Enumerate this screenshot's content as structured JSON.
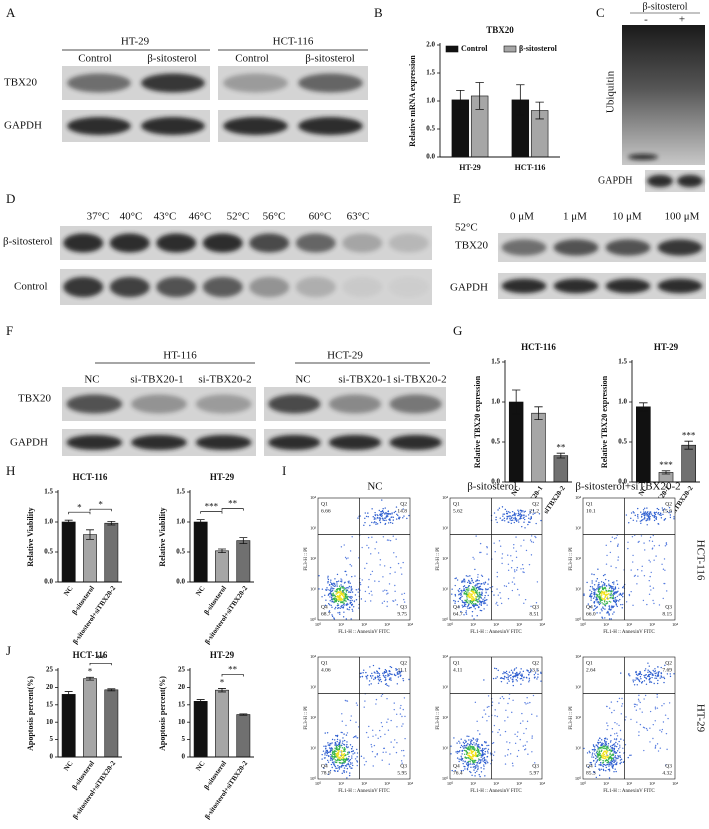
{
  "panels": {
    "A": {
      "label": "A",
      "groups": [
        "HT-29",
        "HCT-116"
      ],
      "lanes": [
        "Control",
        "β-sitosterol",
        "Control",
        "β-sitosterol"
      ],
      "rows": [
        "TBX20",
        "GAPDH"
      ]
    },
    "B": {
      "label": "B"
    },
    "C": {
      "label": "C",
      "treatment": "β-sitosterol",
      "lanes": [
        "-",
        "+"
      ],
      "rows": [
        "Ubiquitin",
        "GAPDH"
      ]
    },
    "D": {
      "label": "D",
      "lanes": [
        "37°C",
        "40°C",
        "43°C",
        "46°C",
        "52°C",
        "56°C",
        "60°C",
        "63°C"
      ],
      "rows": [
        "β-sitosterol",
        "Control"
      ]
    },
    "E": {
      "label": "E",
      "temperature": "52°C",
      "lanes": [
        "0 μM",
        "1 μM",
        "10 μM",
        "100 μM"
      ],
      "rows": [
        "TBX20",
        "GAPDH"
      ]
    },
    "F": {
      "label": "F",
      "groups": [
        "HT-116",
        "HCT-29"
      ],
      "lanes": [
        "NC",
        "si-TBX20-1",
        "si-TBX20-2",
        "NC",
        "si-TBX20-1",
        "si-TBX20-2"
      ],
      "rows": [
        "TBX20",
        "GAPDH"
      ]
    },
    "G": {
      "label": "G"
    },
    "H": {
      "label": "H"
    },
    "J": {
      "label": "J"
    }
  },
  "chart_data": [
    {
      "type": "bar",
      "title": "TBX20",
      "ylabel": "Relative mRNA expression",
      "categories": [
        "HT-29",
        "HCT-116"
      ],
      "series": [
        {
          "name": "Control",
          "color": "#111111",
          "values": [
            1.02,
            1.02
          ],
          "errors": [
            0.17,
            0.27
          ]
        },
        {
          "name": "β-sitosterol",
          "color": "#a6a6a6",
          "values": [
            1.09,
            0.83
          ],
          "errors": [
            0.24,
            0.15
          ]
        }
      ],
      "ylim": [
        0,
        2
      ],
      "yticks": [
        {
          "value": 0,
          "label": "0.0"
        },
        {
          "value": 0.5,
          "label": "0.5"
        },
        {
          "value": 1,
          "label": "1.0"
        },
        {
          "value": 1.5,
          "label": "1.5"
        },
        {
          "value": 2,
          "label": "2.0"
        }
      ]
    },
    {
      "type": "bar",
      "title": "HCT-116",
      "ylabel": "Relative TBX20 expression",
      "categories": [
        "NC",
        "siTBX20-1",
        "siTBX20-2"
      ],
      "values": [
        1.0,
        0.86,
        0.33
      ],
      "errors": [
        0.15,
        0.08,
        0.03
      ],
      "colors": [
        "#111111",
        "#a6a6a6",
        "#707070"
      ],
      "sig_labels": [
        null,
        null,
        "**"
      ],
      "ylim": [
        0,
        1.5
      ],
      "yticks": [
        {
          "value": 0,
          "label": "0.0"
        },
        {
          "value": 0.5,
          "label": "0.5"
        },
        {
          "value": 1,
          "label": "1.0"
        },
        {
          "value": 1.5,
          "label": "1.5"
        }
      ]
    },
    {
      "type": "bar",
      "title": "HT-29",
      "ylabel": "Relative TBX20 expression",
      "categories": [
        "NC",
        "siTBX20-1",
        "siTBX20-2"
      ],
      "values": [
        0.94,
        0.12,
        0.46
      ],
      "errors": [
        0.05,
        0.02,
        0.05
      ],
      "colors": [
        "#111111",
        "#a6a6a6",
        "#707070"
      ],
      "sig_labels": [
        null,
        "***",
        "***"
      ],
      "ylim": [
        0,
        1.5
      ],
      "yticks": [
        {
          "value": 0,
          "label": "0.0"
        },
        {
          "value": 0.5,
          "label": "0.5"
        },
        {
          "value": 1,
          "label": "1.0"
        },
        {
          "value": 1.5,
          "label": "1.5"
        }
      ]
    },
    {
      "type": "bar",
      "title": "HCT-116",
      "ylabel": "Relative Viability",
      "categories": [
        "NC",
        "β-sitosterol",
        "β-sitosterol+siTBX20-2"
      ],
      "values": [
        1.0,
        0.79,
        0.98
      ],
      "errors": [
        0.03,
        0.08,
        0.03
      ],
      "colors": [
        "#111111",
        "#a6a6a6",
        "#707070"
      ],
      "brackets": [
        {
          "label": "*",
          "from": 0,
          "to": 1
        },
        {
          "label": "*",
          "from": 1,
          "to": 2
        }
      ],
      "ylim": [
        0,
        1.5
      ],
      "yticks": [
        {
          "value": 0,
          "label": "0.0"
        },
        {
          "value": 0.5,
          "label": "0.5"
        },
        {
          "value": 1,
          "label": "1.0"
        },
        {
          "value": 1.5,
          "label": "1.5"
        }
      ]
    },
    {
      "type": "bar",
      "title": "HT-29",
      "ylabel": "Relative Viability",
      "categories": [
        "NC",
        "β-sitosterol",
        "β-sitosterol+siTBX20-2"
      ],
      "values": [
        1.0,
        0.52,
        0.69
      ],
      "errors": [
        0.04,
        0.03,
        0.05
      ],
      "colors": [
        "#111111",
        "#a6a6a6",
        "#707070"
      ],
      "brackets": [
        {
          "label": "***",
          "from": 0,
          "to": 1
        },
        {
          "label": "**",
          "from": 1,
          "to": 2
        }
      ],
      "ylim": [
        0,
        1.5
      ],
      "yticks": [
        {
          "value": 0,
          "label": "0.0"
        },
        {
          "value": 0.5,
          "label": "0.5"
        },
        {
          "value": 1,
          "label": "1.0"
        },
        {
          "value": 1.5,
          "label": "1.5"
        }
      ]
    },
    {
      "type": "bar",
      "title": "HCT-116",
      "ylabel": "Apoptosis percent(%)",
      "categories": [
        "NC",
        "β-sitosterol",
        "β-sitosterol+siTBX20-2"
      ],
      "values": [
        18,
        22.5,
        19.3
      ],
      "errors": [
        0.8,
        0.4,
        0.3
      ],
      "colors": [
        "#111111",
        "#a6a6a6",
        "#707070"
      ],
      "sig_labels": [
        null,
        "*",
        null
      ],
      "brackets": [
        {
          "label": "**",
          "from": 1,
          "to": 2
        }
      ],
      "ylim": [
        0,
        25
      ],
      "yticks": [
        0,
        5,
        10,
        15,
        20,
        25
      ]
    },
    {
      "type": "bar",
      "title": "HT-29",
      "ylabel": "Apoptosis percent(%)",
      "categories": [
        "NC",
        "β-sitosterol",
        "β-sitosterol+siTBX20-2"
      ],
      "values": [
        16,
        19.2,
        12.2
      ],
      "errors": [
        0.5,
        0.5,
        0.2
      ],
      "colors": [
        "#111111",
        "#a6a6a6",
        "#707070"
      ],
      "sig_labels": [
        null,
        "*",
        null
      ],
      "brackets": [
        {
          "label": "**",
          "from": 1,
          "to": 2
        }
      ],
      "ylim": [
        0,
        25
      ],
      "yticks": [
        0,
        5,
        10,
        15,
        20,
        25
      ]
    }
  ],
  "flow": {
    "label": "I",
    "columns": [
      "NC",
      "β-sitosterol",
      "β-sitosterol+siTBX20-2"
    ],
    "rows": [
      "HCT-116",
      "HT-29"
    ],
    "quadrants": [
      "Q1",
      "Q2",
      "Q3",
      "Q4"
    ],
    "xlabel": "FL1-H :: AnnexinV FITC",
    "ylabel": "FL3-H :: PI",
    "axis_ticks": [
      "10⁰",
      "10¹",
      "10²",
      "10³",
      "10⁴"
    ],
    "plots": [
      [
        {
          "values": [
            6.66,
            14.8,
            9.75,
            68.7
          ]
        },
        {
          "values": [
            5.62,
            21.2,
            8.51,
            64.7
          ]
        },
        {
          "values": [
            10.1,
            15.6,
            8.15,
            66
          ],
          "value_labels": [
            "10.1",
            "15.6",
            "8.15",
            "66.0"
          ]
        }
      ],
      [
        {
          "values": [
            4.06,
            11.1,
            5.95,
            78.9
          ]
        },
        {
          "values": [
            4.11,
            13.5,
            5.97,
            76.4
          ]
        },
        {
          "values": [
            2.64,
            7.69,
            4.32,
            85.3
          ]
        }
      ]
    ]
  }
}
